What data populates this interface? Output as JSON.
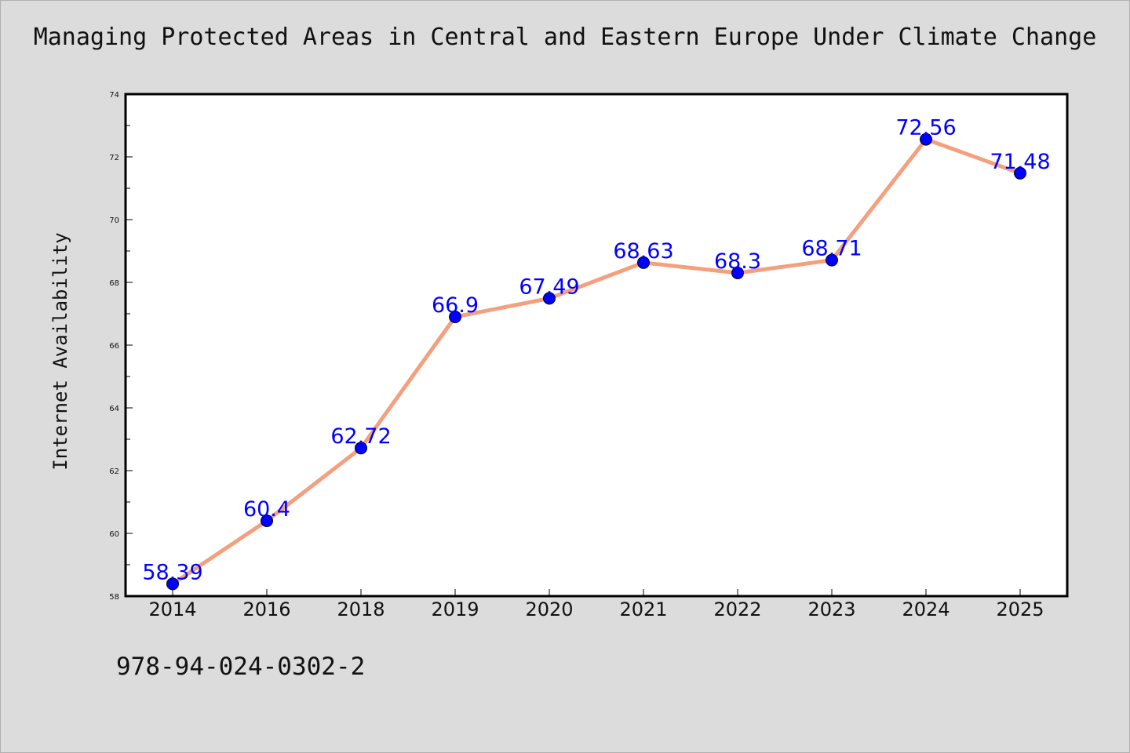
{
  "page": {
    "isbn": "978-94-024-0302-2"
  },
  "colors": {
    "background": "#dcdcdc",
    "plot_background": "#ffffff",
    "line": "#f4a07f",
    "marker": "#0000ff",
    "data_label": "#0000ff"
  },
  "chart_data": {
    "type": "line",
    "title": "Managing Protected Areas in Central and Eastern Europe Under Climate Change",
    "xlabel": "",
    "ylabel": "Internet Availability",
    "categories": [
      "2014",
      "2016",
      "2018",
      "2019",
      "2020",
      "2021",
      "2022",
      "2023",
      "2024",
      "2025"
    ],
    "series": [
      {
        "values": [
          58.39,
          60.4,
          62.72,
          66.9,
          67.49,
          68.63,
          68.3,
          68.71,
          72.56,
          71.48
        ],
        "labels": [
          "58.39",
          "60.4",
          "62.72",
          "66.9",
          "67.49",
          "68.63",
          "68.3",
          "68.71",
          "72.56",
          "71.48"
        ]
      }
    ],
    "ylim": [
      58,
      74
    ],
    "yticks": [
      "58",
      "60",
      "62",
      "64",
      "66",
      "68",
      "70",
      "72",
      "74"
    ],
    "ytick_values": [
      58,
      60,
      62,
      64,
      66,
      68,
      70,
      72,
      74
    ],
    "minor_ytick_step": 1,
    "grid": false,
    "legend": "none",
    "markers": "circle"
  }
}
